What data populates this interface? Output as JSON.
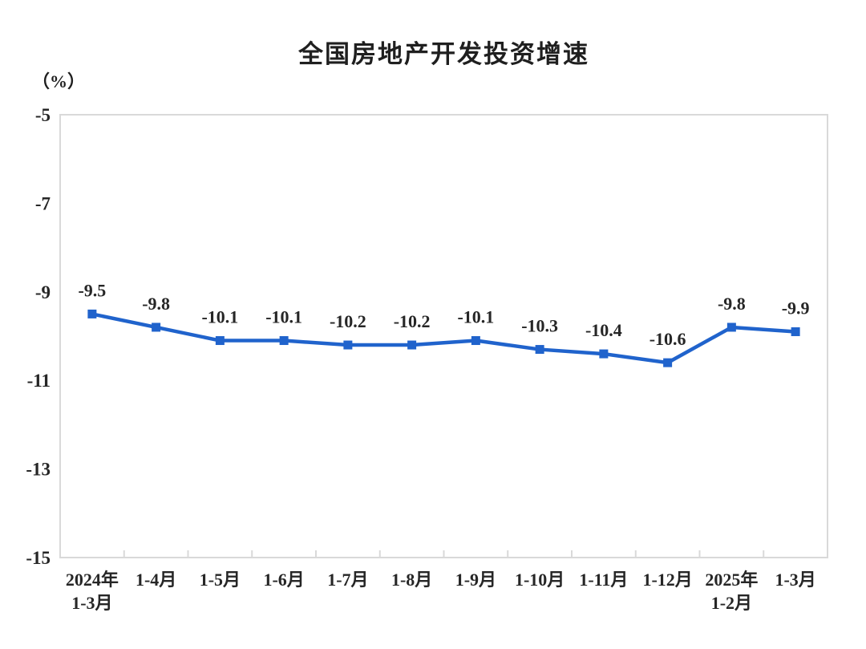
{
  "page": {
    "background_color": "#ffffff"
  },
  "chart_data": {
    "type": "line",
    "title": "全国房地产开发投资增速",
    "unit_label": "（%）",
    "categories": [
      "2024年\n1-3月",
      "1-4月",
      "1-5月",
      "1-6月",
      "1-7月",
      "1-8月",
      "1-9月",
      "1-10月",
      "1-11月",
      "1-12月",
      "2025年\n1-2月",
      "1-3月"
    ],
    "values": [
      -9.5,
      -9.8,
      -10.1,
      -10.1,
      -10.2,
      -10.2,
      -10.1,
      -10.3,
      -10.4,
      -10.6,
      -9.8,
      -9.9
    ],
    "data_labels": [
      "-9.5",
      "-9.8",
      "-10.1",
      "-10.1",
      "-10.2",
      "-10.2",
      "-10.1",
      "-10.3",
      "-10.4",
      "-10.6",
      "-9.8",
      "-9.9"
    ],
    "xlabel": "",
    "ylabel": "（%）",
    "ylim": [
      -15,
      -5
    ],
    "y_ticks": [
      "-5",
      "-7",
      "-9",
      "-11",
      "-13",
      "-15"
    ],
    "y_tick_values": [
      -5,
      -7,
      -9,
      -11,
      -13,
      -15
    ],
    "grid": false,
    "legend_position": "none",
    "line_color": "#2063cc",
    "marker": "square",
    "plot_border_color": "#d9d9d9",
    "text_color": "#262626"
  }
}
